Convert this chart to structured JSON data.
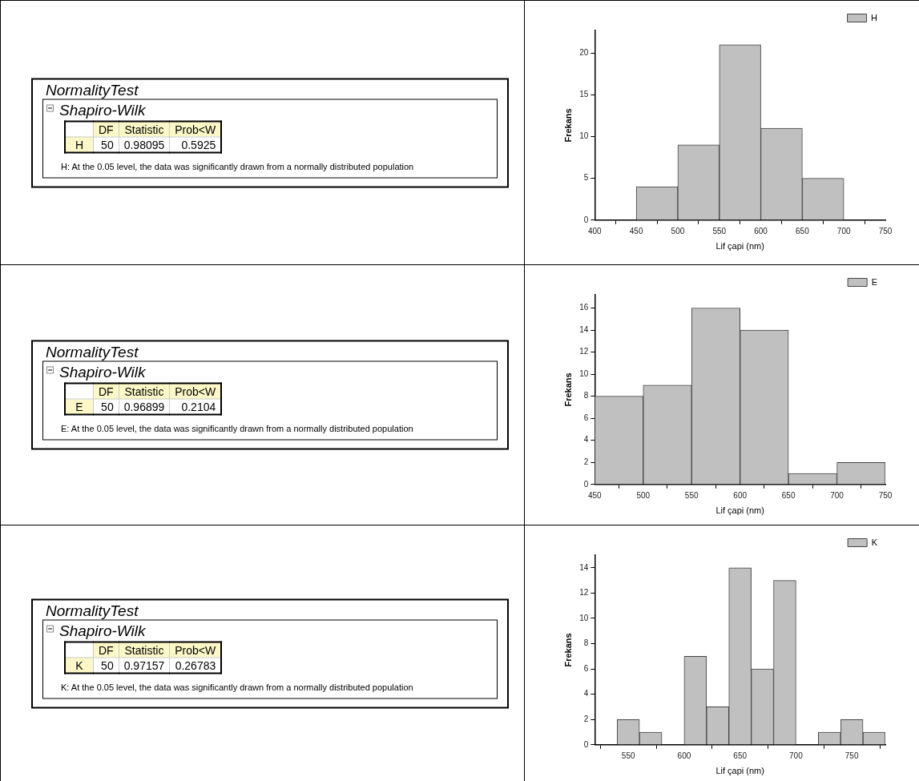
{
  "chart_data": [
    {
      "type": "other",
      "title": "NormalityTest",
      "subtitle": "Shapiro-Wilk",
      "categories": [
        "DF",
        "Statistic",
        "Prob<W"
      ],
      "y_categories": [
        "H"
      ],
      "cell_labels": [
        [
          "50",
          "0.98095",
          "0.5925"
        ]
      ],
      "annotations": [
        "H: At the 0.05 level, the data was significantly drawn from a normally distributed population"
      ]
    },
    {
      "type": "histogram",
      "bins": [
        450,
        500,
        550,
        600,
        650,
        700
      ],
      "series": [
        {
          "name": "H",
          "color": "#c0c0c0",
          "values": [
            4,
            9,
            21,
            11,
            5
          ]
        }
      ],
      "xlabel": "Lif çapi (nm)",
      "ylabel": "Frekans",
      "xlim": [
        400,
        750
      ],
      "xticks": [
        400,
        450,
        500,
        550,
        600,
        650,
        700,
        750
      ],
      "ylim": [
        0,
        22.7
      ],
      "yticks": [
        0,
        5,
        10,
        15,
        20
      ],
      "legend": "top right",
      "grid": false
    },
    {
      "type": "other",
      "title": "NormalityTest",
      "subtitle": "Shapiro-Wilk",
      "categories": [
        "DF",
        "Statistic",
        "Prob<W"
      ],
      "y_categories": [
        "E"
      ],
      "cell_labels": [
        [
          "50",
          "0.96899",
          "0.2104"
        ]
      ],
      "annotations": [
        "E: At the 0.05 level, the data was significantly drawn from a normally distributed population"
      ]
    },
    {
      "type": "histogram",
      "bins": [
        450,
        500,
        550,
        600,
        650,
        700,
        750
      ],
      "series": [
        {
          "name": "E",
          "color": "#c0c0c0",
          "values": [
            8,
            9,
            16,
            14,
            1,
            2
          ]
        }
      ],
      "xlabel": "Lif çapi (nm)",
      "ylabel": "Frekans",
      "xlim": [
        450,
        750
      ],
      "xticks": [
        450,
        500,
        550,
        600,
        650,
        700,
        750
      ],
      "ylim": [
        0,
        17.2
      ],
      "yticks": [
        0,
        2,
        4,
        6,
        8,
        10,
        12,
        14,
        16
      ],
      "legend": "top right",
      "grid": false
    },
    {
      "type": "other",
      "title": "NormalityTest",
      "subtitle": "Shapiro-Wilk",
      "categories": [
        "DF",
        "Statistic",
        "Prob<W"
      ],
      "y_categories": [
        "K"
      ],
      "cell_labels": [
        [
          "50",
          "0.97157",
          "0.26783"
        ]
      ],
      "annotations": [
        "K: At the 0.05 level, the data was significantly drawn from a normally distributed population"
      ]
    },
    {
      "type": "histogram",
      "bins": [
        540,
        560,
        580,
        600,
        620,
        640,
        660,
        680,
        700,
        720,
        740,
        760,
        780
      ],
      "series": [
        {
          "name": "K",
          "color": "#c0c0c0",
          "values": [
            2,
            1,
            0,
            7,
            3,
            14,
            6,
            13,
            0,
            1,
            2,
            1
          ]
        }
      ],
      "xlabel": "Lif çapi (nm)",
      "ylabel": "Frekans",
      "xlim": [
        520,
        780
      ],
      "xticks": [
        550,
        600,
        650,
        700,
        750
      ],
      "ylim": [
        0,
        15
      ],
      "yticks": [
        0,
        2,
        4,
        6,
        8,
        10,
        12,
        14
      ],
      "legend": "top right",
      "grid": false
    }
  ]
}
